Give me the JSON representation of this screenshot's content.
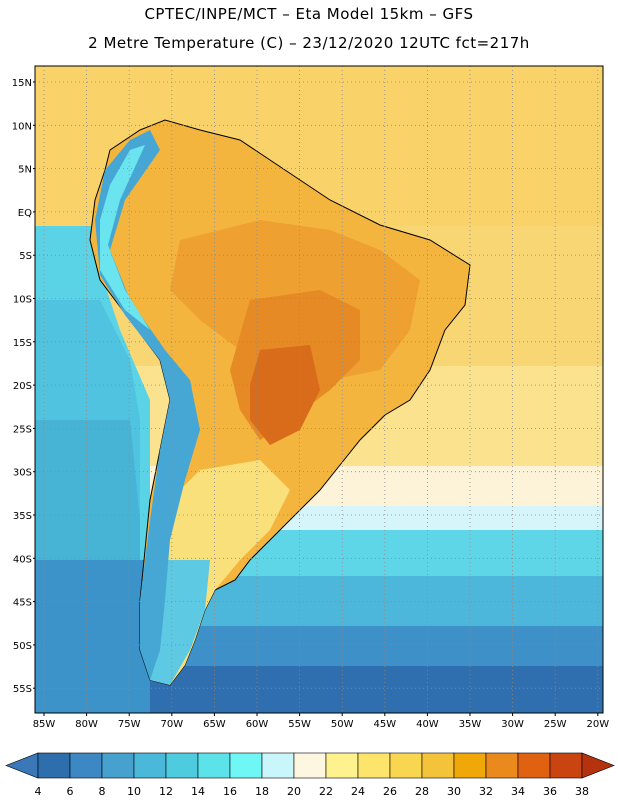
{
  "title_line1": "CPTEC/INPE/MCT –  Eta Model 15km – GFS",
  "title_line2": "2 Metre Temperature (C) – 23/12/2020 12UTC fct=217h",
  "lat_labels": [
    "15N",
    "10N",
    "5N",
    "EQ",
    "5S",
    "10S",
    "15S",
    "20S",
    "25S",
    "30S",
    "35S",
    "40S",
    "45S",
    "50S",
    "55S"
  ],
  "lon_labels": [
    "85W",
    "80W",
    "75W",
    "70W",
    "65W",
    "60W",
    "55W",
    "50W",
    "45W",
    "40W",
    "35W",
    "30W",
    "25W",
    "20W"
  ],
  "colorbar": {
    "ticks": [
      "4",
      "6",
      "8",
      "10",
      "12",
      "14",
      "16",
      "18",
      "20",
      "22",
      "24",
      "26",
      "28",
      "30",
      "32",
      "34",
      "36",
      "38"
    ],
    "colors": [
      "#3a78b8",
      "#2e6ead",
      "#3b88c4",
      "#47a1cf",
      "#4ab8d8",
      "#4fcbe0",
      "#5ce3ea",
      "#6ff7f5",
      "#c9f6fb",
      "#fdf6e0",
      "#fdf28e",
      "#fde46a",
      "#f8d650",
      "#f3c33a",
      "#f0a808",
      "#ea8a1d",
      "#e06211",
      "#c94410",
      "#b4320c"
    ]
  },
  "map": {
    "background_colors": {
      "sea_warm": "#f6cf6a",
      "sea_mid": "#fdf6e0",
      "sea_cool": "#5ecfe4",
      "sea_cold": "#3d8ac6",
      "land_hot": "#d9781c",
      "land_warm": "#f0ad33",
      "andes": "#4aa0d0"
    }
  }
}
